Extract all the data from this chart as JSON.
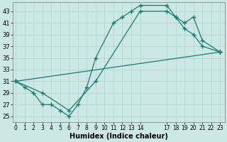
{
  "xlabel": "Humidex (Indice chaleur)",
  "bg_color": "#cce8e4",
  "line_color": "#1a7a6e",
  "grid_color": "#b8d8d4",
  "xlim": [
    -0.3,
    23.5
  ],
  "ylim": [
    24,
    44.5
  ],
  "xticks": [
    0,
    1,
    2,
    3,
    4,
    5,
    6,
    7,
    8,
    9,
    10,
    11,
    12,
    13,
    14,
    17,
    18,
    19,
    20,
    21,
    22,
    23
  ],
  "yticks": [
    25,
    27,
    29,
    31,
    33,
    35,
    37,
    39,
    41,
    43
  ],
  "line1_x": [
    0,
    1,
    2,
    3,
    4,
    5,
    6,
    7,
    8,
    9,
    11,
    12,
    13,
    14,
    17,
    18,
    19,
    20,
    21,
    23
  ],
  "line1_y": [
    31,
    30,
    29,
    27,
    27,
    26,
    25,
    27,
    30,
    35,
    41,
    42,
    43,
    44,
    44,
    42,
    40,
    39,
    37,
    36
  ],
  "line2_x": [
    0,
    3,
    6,
    9,
    14,
    17,
    18,
    19,
    20,
    21,
    23
  ],
  "line2_y": [
    31,
    29,
    26,
    31,
    43,
    43,
    42,
    41,
    42,
    38,
    36
  ],
  "line3_x": [
    0,
    23
  ],
  "line3_y": [
    31,
    36
  ]
}
